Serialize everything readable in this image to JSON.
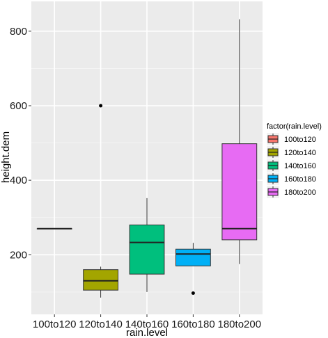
{
  "chart_data": {
    "type": "box",
    "xlabel": "rain.level",
    "ylabel": "height.dem",
    "categories": [
      "100to120",
      "120to140",
      "140to160",
      "160to180",
      "180to200"
    ],
    "ylim": [
      40,
      880
    ],
    "yticks": [
      200,
      400,
      600,
      800
    ],
    "grid": true,
    "legend": {
      "title": "factor(rain.level)",
      "position": "right",
      "entries": [
        "100to120",
        "120to140",
        "140to160",
        "160to180",
        "180to200"
      ]
    },
    "series": [
      {
        "category": "100to120",
        "color": "#F8766D",
        "min": 270,
        "q1": 270,
        "median": 270,
        "q3": 270,
        "max": 270,
        "outliers": []
      },
      {
        "category": "120to140",
        "color": "#A3A500",
        "min": 85,
        "q1": 105,
        "median": 130,
        "q3": 160,
        "max": 168,
        "outliers": [
          600
        ]
      },
      {
        "category": "140to160",
        "color": "#00BF7D",
        "min": 100,
        "q1": 148,
        "median": 233,
        "q3": 280,
        "max": 352,
        "outliers": []
      },
      {
        "category": "160to180",
        "color": "#00B0F6",
        "min": 170,
        "q1": 170,
        "median": 202,
        "q3": 215,
        "max": 232,
        "outliers": [
          97
        ]
      },
      {
        "category": "180to200",
        "color": "#E76BF3",
        "min": 175,
        "q1": 240,
        "median": 270,
        "q3": 498,
        "max": 832,
        "outliers": []
      }
    ]
  }
}
